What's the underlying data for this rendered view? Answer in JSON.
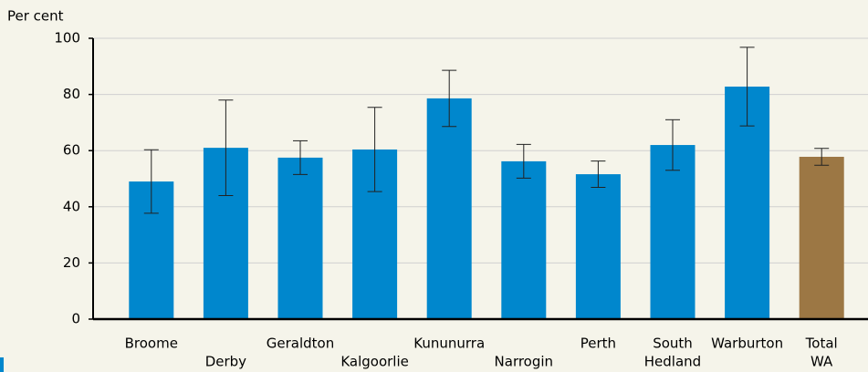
{
  "chart_data": {
    "type": "bar",
    "y_label": "Per cent",
    "categories": [
      [
        "Broome"
      ],
      [
        "Derby"
      ],
      [
        "Geraldton"
      ],
      [
        "Kalgoorlie"
      ],
      [
        "Kununurra"
      ],
      [
        "Narrogin"
      ],
      [
        "Perth"
      ],
      [
        "South",
        "Hedland"
      ],
      [
        "Warburton"
      ],
      [
        "Total",
        "WA"
      ]
    ],
    "values": [
      49,
      61,
      57.5,
      60.4,
      78.6,
      56.2,
      51.6,
      62,
      82.8,
      57.8
    ],
    "errors": [
      11.3,
      17,
      6,
      15,
      10,
      6,
      4.7,
      9,
      14,
      3
    ],
    "colors": [
      "#0087cd",
      "#0087cd",
      "#0087cd",
      "#0087cd",
      "#0087cd",
      "#0087cd",
      "#0087cd",
      "#0087cd",
      "#0087cd",
      "#9c7744"
    ],
    "ylim": [
      0,
      100
    ],
    "yticks": [
      0,
      20,
      40,
      60,
      80,
      100
    ],
    "grid": true
  }
}
